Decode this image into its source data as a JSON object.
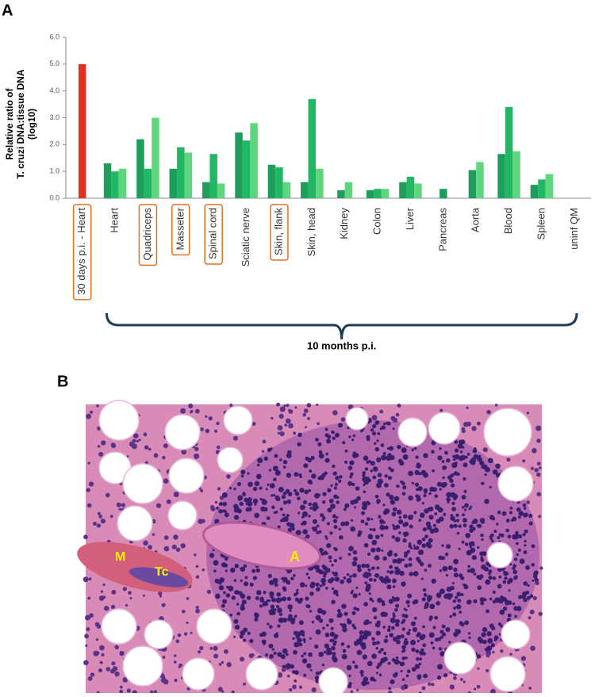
{
  "panel_a": {
    "label": "A"
  },
  "chart_data": {
    "type": "bar",
    "y_label": [
      "Relative ratio of",
      "T. cruzi DNA:tissue DNA",
      "(log10)"
    ],
    "categories": [
      "30 days p.i. - Heart",
      "Heart",
      "Quadriceps",
      "Masseter",
      "Spinal cord",
      "Sciatic nerve",
      "Skin, flank",
      "Skin, head",
      "Kidney",
      "Colon",
      "Liver",
      "Pancreas",
      "Aorta",
      "Blood",
      "Spleen",
      "uninf QM"
    ],
    "series": [
      {
        "color": "#e0301e",
        "values": [
          5.0,
          null,
          null,
          null,
          null,
          null,
          null,
          null,
          null,
          null,
          null,
          null,
          null,
          null,
          null,
          null
        ]
      },
      {
        "color": "#1e9e5a",
        "values": [
          null,
          1.3,
          2.2,
          1.1,
          0.6,
          2.45,
          1.25,
          0.6,
          0.3,
          0.3,
          0.6,
          0.35,
          1.05,
          1.65,
          0.5,
          null
        ]
      },
      {
        "color": "#21b865",
        "values": [
          null,
          1.0,
          1.1,
          1.9,
          1.65,
          2.15,
          1.15,
          3.7,
          null,
          0.35,
          0.8,
          null,
          null,
          3.4,
          0.7,
          null
        ]
      },
      {
        "color": "#5fd67e",
        "values": [
          null,
          1.1,
          3.0,
          1.7,
          0.55,
          2.8,
          0.6,
          1.1,
          0.6,
          0.35,
          0.55,
          null,
          1.35,
          1.75,
          0.9,
          null
        ]
      }
    ],
    "ylim": [
      0,
      6
    ],
    "yticks": [
      {
        "value": 0,
        "label": "0.0"
      },
      {
        "value": 1,
        "label": "1.0"
      },
      {
        "value": 2,
        "label": "2.0"
      },
      {
        "value": 3,
        "label": "3.0"
      },
      {
        "value": 4,
        "label": "4.0"
      },
      {
        "value": 5,
        "label": "5.0"
      },
      {
        "value": 6,
        "label": "6.0"
      }
    ],
    "boxed_categories": [
      0,
      2,
      3,
      4,
      6
    ],
    "box_color": "#e07020",
    "bracket_label": "10 months p.i."
  },
  "panel_b": {
    "label": "B",
    "annotations": [
      "M",
      "Tc",
      "A"
    ]
  }
}
